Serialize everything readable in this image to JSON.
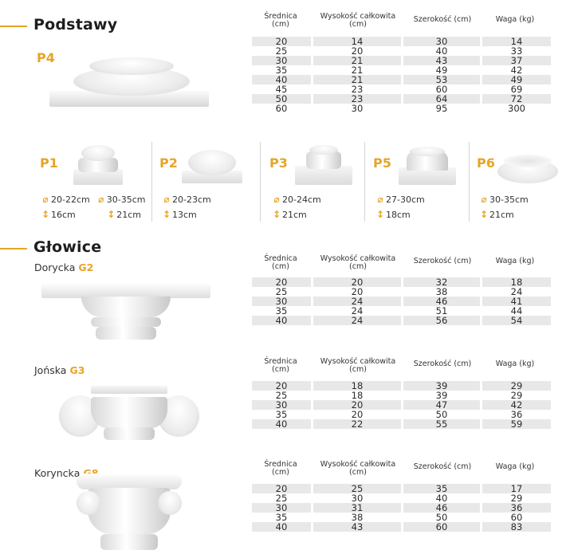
{
  "headers": {
    "diameter": "Średnica",
    "diameter_unit": "(cm)",
    "height": "Wysokość całkowita",
    "height_unit": "(cm)",
    "width": "Szerokość (cm)",
    "weight": "Waga  (kg)"
  },
  "podstawy": {
    "title": "Podstawy",
    "main_code": "P4",
    "table": [
      [
        "20",
        "14",
        "30",
        "14"
      ],
      [
        "25",
        "20",
        "40",
        "33"
      ],
      [
        "30",
        "21",
        "43",
        "37"
      ],
      [
        "35",
        "21",
        "49",
        "42"
      ],
      [
        "40",
        "21",
        "53",
        "49"
      ],
      [
        "45",
        "23",
        "60",
        "69"
      ],
      [
        "50",
        "23",
        "64",
        "72"
      ],
      [
        "60",
        "30",
        "95",
        "300"
      ]
    ],
    "variants": [
      {
        "code": "P1",
        "diam1": "20-22cm",
        "diam2": "30-35cm",
        "h1": "16cm",
        "h2": "21cm"
      },
      {
        "code": "P2",
        "diam1": "20-23cm",
        "h1": "13cm"
      },
      {
        "code": "P3",
        "diam1": "20-24cm",
        "h1": "21cm"
      },
      {
        "code": "P5",
        "diam1": "27-30cm",
        "h1": "18cm"
      },
      {
        "code": "P6",
        "diam1": "30-35cm",
        "h1": "21cm"
      }
    ]
  },
  "glowice": {
    "title": "Głowice",
    "items": [
      {
        "name": "Dorycka",
        "code": "G2",
        "table": [
          [
            "20",
            "20",
            "32",
            "18"
          ],
          [
            "25",
            "20",
            "38",
            "24"
          ],
          [
            "30",
            "24",
            "46",
            "41"
          ],
          [
            "35",
            "24",
            "51",
            "44"
          ],
          [
            "40",
            "24",
            "56",
            "54"
          ]
        ]
      },
      {
        "name": "Jońska",
        "code": "G3",
        "table": [
          [
            "20",
            "18",
            "39",
            "29"
          ],
          [
            "25",
            "18",
            "39",
            "29"
          ],
          [
            "30",
            "20",
            "47",
            "42"
          ],
          [
            "35",
            "20",
            "50",
            "36"
          ],
          [
            "40",
            "22",
            "55",
            "59"
          ]
        ]
      },
      {
        "name": "Korynckа",
        "code": "G8",
        "table": [
          [
            "20",
            "25",
            "35",
            "17"
          ],
          [
            "25",
            "30",
            "40",
            "29"
          ],
          [
            "30",
            "31",
            "46",
            "36"
          ],
          [
            "35",
            "38",
            "50",
            "60"
          ],
          [
            "40",
            "43",
            "60",
            "83"
          ]
        ]
      }
    ]
  },
  "icons": {
    "diameter": "diameter-icon",
    "height": "height-icon"
  },
  "colors": {
    "accent": "#e7a427",
    "row_shade": "#e8e8e8"
  }
}
